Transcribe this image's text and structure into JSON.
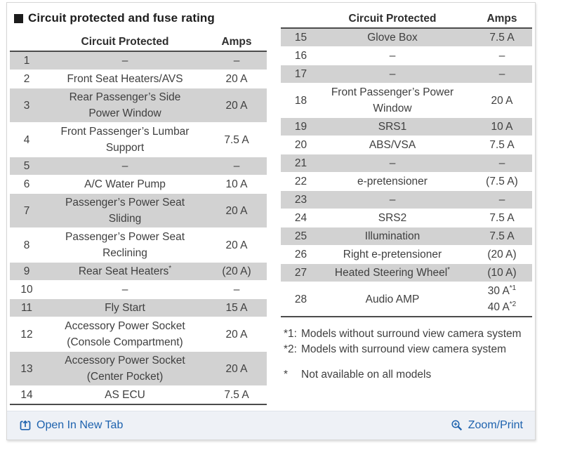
{
  "title": "Circuit protected and fuse rating",
  "colors": {
    "row_shade": "#d2d2d2",
    "table_text": "#3f3f3f",
    "link_blue": "#1d62ae",
    "footer_bg": "#eef1f6",
    "title_black": "#1c1c1c"
  },
  "icons": {
    "title_bullet": "black-square-bullet",
    "open_new_tab": "open-in-new-tab-icon",
    "zoom": "magnifier-plus-icon"
  },
  "tables": {
    "left": {
      "header": {
        "circuit": "Circuit Protected",
        "amps": "Amps"
      },
      "rows": [
        {
          "num": "1",
          "circuit": "–",
          "amps": "–",
          "shaded": true
        },
        {
          "num": "2",
          "circuit": "Front Seat Heaters/AVS",
          "amps": "20 A",
          "shaded": false
        },
        {
          "num": "3",
          "circuit": "Rear Passenger’s Side\nPower Window",
          "amps": "20 A",
          "shaded": true
        },
        {
          "num": "4",
          "circuit": "Front Passenger’s Lumbar\nSupport",
          "amps": "7.5 A",
          "shaded": false
        },
        {
          "num": "5",
          "circuit": "–",
          "amps": "–",
          "shaded": true
        },
        {
          "num": "6",
          "circuit": "A/C Water Pump",
          "amps": "10 A",
          "shaded": false
        },
        {
          "num": "7",
          "circuit": "Passenger’s Power Seat\nSliding",
          "amps": "20 A",
          "shaded": true
        },
        {
          "num": "8",
          "circuit": "Passenger’s Power Seat\nReclining",
          "amps": "20 A",
          "shaded": false
        },
        {
          "num": "9",
          "circuit": "Rear Seat Heaters",
          "circuit_sup": "*",
          "amps": "(20 A)",
          "shaded": true
        },
        {
          "num": "10",
          "circuit": "–",
          "amps": "–",
          "shaded": false
        },
        {
          "num": "11",
          "circuit": "Fly Start",
          "amps": "15 A",
          "shaded": true
        },
        {
          "num": "12",
          "circuit": "Accessory Power Socket\n(Console Compartment)",
          "amps": "20 A",
          "shaded": false
        },
        {
          "num": "13",
          "circuit": "Accessory Power Socket\n(Center Pocket)",
          "amps": "20 A",
          "shaded": true
        },
        {
          "num": "14",
          "circuit": "AS ECU",
          "amps": "7.5 A",
          "shaded": false
        }
      ]
    },
    "right": {
      "header": {
        "circuit": "Circuit Protected",
        "amps": "Amps"
      },
      "rows": [
        {
          "num": "15",
          "circuit": "Glove Box",
          "amps": "7.5 A",
          "shaded": true
        },
        {
          "num": "16",
          "circuit": "–",
          "amps": "–",
          "shaded": false
        },
        {
          "num": "17",
          "circuit": "–",
          "amps": "–",
          "shaded": true
        },
        {
          "num": "18",
          "circuit": "Front Passenger’s Power\nWindow",
          "amps": "20 A",
          "shaded": false
        },
        {
          "num": "19",
          "circuit": "SRS1",
          "amps": "10 A",
          "shaded": true
        },
        {
          "num": "20",
          "circuit": "ABS/VSA",
          "amps": "7.5 A",
          "shaded": false
        },
        {
          "num": "21",
          "circuit": "–",
          "amps": "–",
          "shaded": true
        },
        {
          "num": "22",
          "circuit": "e-pretensioner",
          "amps": "(7.5 A)",
          "shaded": false
        },
        {
          "num": "23",
          "circuit": "–",
          "amps": "–",
          "shaded": true
        },
        {
          "num": "24",
          "circuit": "SRS2",
          "amps": "7.5 A",
          "shaded": false
        },
        {
          "num": "25",
          "circuit": "Illumination",
          "amps": "7.5 A",
          "shaded": true
        },
        {
          "num": "26",
          "circuit": "Right e-pretensioner",
          "amps": "(20 A)",
          "shaded": false
        },
        {
          "num": "27",
          "circuit": "Heated Steering Wheel",
          "circuit_sup": "*",
          "amps": "(10 A)",
          "shaded": true
        },
        {
          "num": "28",
          "circuit": "Audio AMP",
          "amps_lines": [
            {
              "text": "30 A",
              "sup": "*1"
            },
            {
              "text": "40 A",
              "sup": "*2"
            }
          ],
          "shaded": false
        }
      ]
    }
  },
  "footnotes": [
    {
      "marker": "*1:",
      "text": "Models without surround view camera system",
      "spaced": false
    },
    {
      "marker": "*2:",
      "text": "Models with surround view camera system",
      "spaced": false
    },
    {
      "marker": "*",
      "text": "Not available on all models",
      "spaced": true
    }
  ],
  "footer": {
    "open_link": "Open In New Tab",
    "zoom_link": "Zoom/Print"
  }
}
